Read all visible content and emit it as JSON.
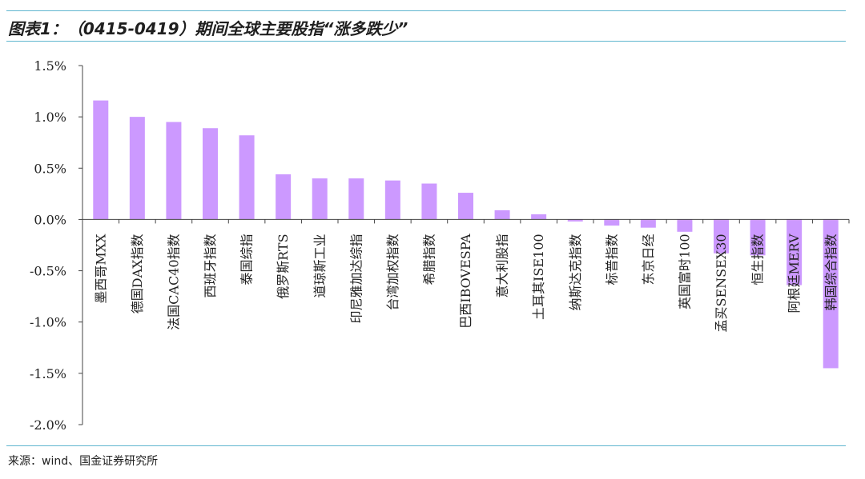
{
  "header": {
    "title": "图表1：（0415-0419）期间全球主要股指“涨多跌少”"
  },
  "footer": {
    "source": "来源：wind、国金证券研究所"
  },
  "colors": {
    "bar": "#cc99ff",
    "axis": "#444444",
    "rule": "#5fb6cf"
  },
  "chart_data": {
    "type": "bar",
    "title": "",
    "xlabel": "",
    "ylabel": "",
    "ylim": [
      -2.0,
      1.5
    ],
    "yticks": [
      "1.5%",
      "1.0%",
      "0.5%",
      "0.0%",
      "-0.5%",
      "-1.0%",
      "-1.5%",
      "-2.0%"
    ],
    "grid": false,
    "legend": "none",
    "categories": [
      "墨西哥MXX",
      "德国DAX指数",
      "法国CAC40指数",
      "西班牙指数",
      "泰国综指",
      "俄罗斯RTS",
      "道琼斯工业",
      "印尼雅加达综指",
      "台湾加权指数",
      "希腊指数",
      "巴西IBOVESPA",
      "意大利股指",
      "土耳其ISE100",
      "纳斯达克指数",
      "标普指数",
      "东京日经",
      "英国富时100",
      "孟买SENSEX30",
      "恒生指数",
      "阿根廷MERV",
      "韩国综合指数"
    ],
    "values": [
      1.16,
      1.0,
      0.95,
      0.89,
      0.82,
      0.44,
      0.4,
      0.4,
      0.38,
      0.35,
      0.26,
      0.09,
      0.05,
      -0.02,
      -0.06,
      -0.08,
      -0.12,
      -0.33,
      -0.35,
      -0.64,
      -1.45
    ]
  }
}
